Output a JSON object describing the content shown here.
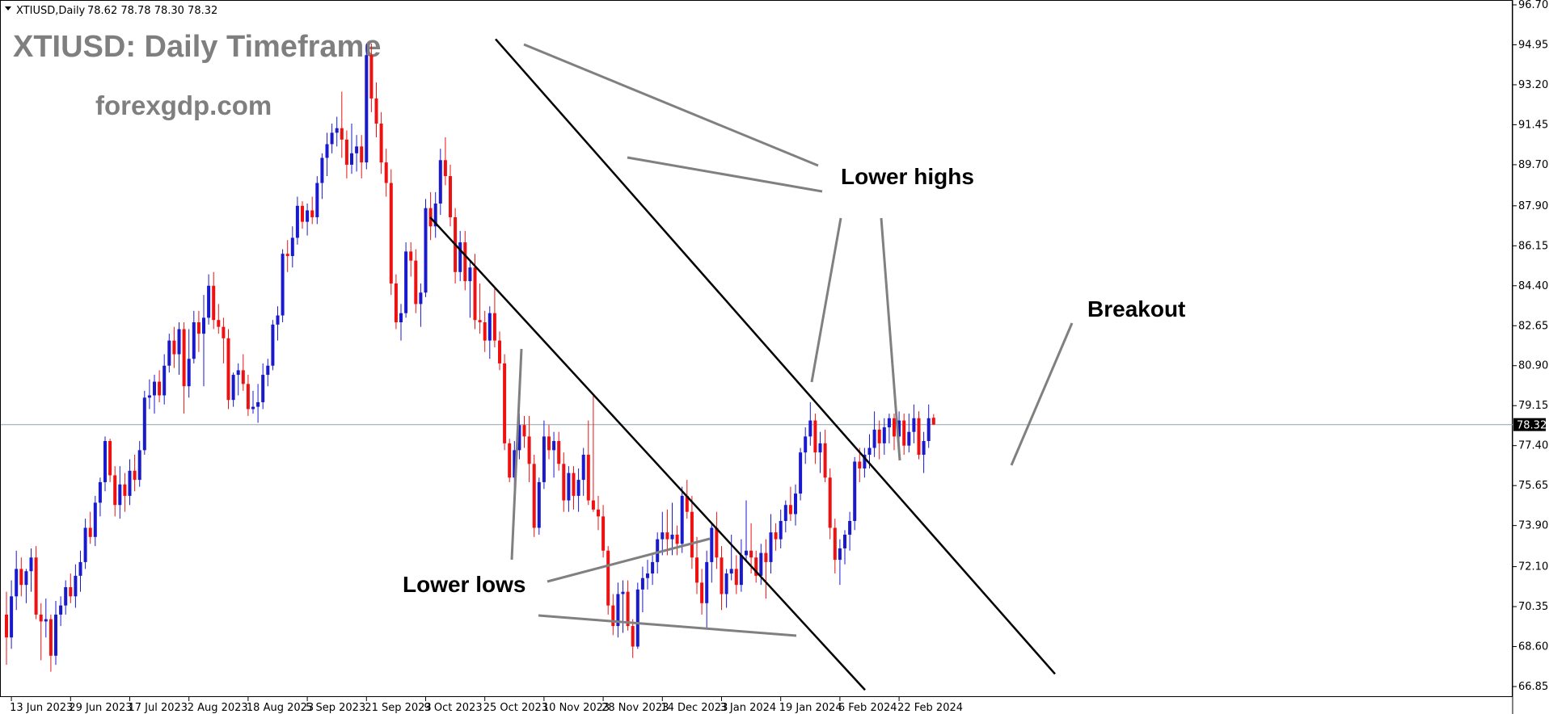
{
  "header": {
    "symbol_info": "XTIUSD,Daily",
    "ohlc": "78.62 78.78 78.30 78.32"
  },
  "watermark": {
    "title": "XTIUSD: Daily Timeframe",
    "site": "forexgdp.com"
  },
  "annotations": {
    "lower_highs": "Lower highs",
    "lower_lows": "Lower lows",
    "breakout": "Breakout"
  },
  "colors": {
    "bull": "#1a1acd",
    "bear": "#ee1111",
    "price_line": "#8fa3a9",
    "current_tag": "#000000",
    "annotation_line": "#808080",
    "channel_line": "#000000"
  },
  "chart_data": {
    "type": "candlestick",
    "title": "XTIUSD,Daily",
    "current_price": 78.32,
    "ylim": [
      66.85,
      96.7
    ],
    "y_ticks": [
      "96.70",
      "94.95",
      "93.20",
      "91.45",
      "89.70",
      "87.90",
      "86.15",
      "84.40",
      "82.65",
      "80.90",
      "79.15",
      "77.40",
      "75.65",
      "73.90",
      "72.10",
      "70.35",
      "68.60",
      "66.85"
    ],
    "x_ticks": [
      "13 Jun 2023",
      "29 Jun 2023",
      "17 Jul 2023",
      "2 Aug 2023",
      "18 Aug 2023",
      "5 Sep 2023",
      "21 Sep 2023",
      "9 Oct 2023",
      "25 Oct 2023",
      "10 Nov 2023",
      "28 Nov 2023",
      "14 Dec 2023",
      "3 Jan 2024",
      "19 Jan 2024",
      "6 Feb 2024",
      "22 Feb 2024"
    ],
    "channel": {
      "upper": {
        "from": [
          "2023-09-26",
          95.2
        ],
        "to": [
          "2024-02-01",
          67.4
        ]
      },
      "lower": {
        "from": [
          "2023-09-10",
          87.4
        ],
        "to": [
          "2023-12-10",
          66.7
        ]
      }
    },
    "ohlc": [
      {
        "o": 70.0,
        "h": 71.0,
        "l": 67.8,
        "c": 69.0
      },
      {
        "o": 69.0,
        "h": 71.5,
        "l": 68.5,
        "c": 70.8
      },
      {
        "o": 70.8,
        "h": 72.8,
        "l": 70.2,
        "c": 72.0
      },
      {
        "o": 72.0,
        "h": 72.5,
        "l": 70.8,
        "c": 71.3
      },
      {
        "o": 71.3,
        "h": 72.0,
        "l": 70.5,
        "c": 71.9
      },
      {
        "o": 71.9,
        "h": 72.9,
        "l": 71.0,
        "c": 72.5
      },
      {
        "o": 72.5,
        "h": 73.0,
        "l": 69.8,
        "c": 70.0
      },
      {
        "o": 70.0,
        "h": 70.5,
        "l": 68.0,
        "c": 69.7
      },
      {
        "o": 69.7,
        "h": 70.7,
        "l": 69.0,
        "c": 69.8
      },
      {
        "o": 69.8,
        "h": 70.0,
        "l": 67.5,
        "c": 68.2
      },
      {
        "o": 68.2,
        "h": 70.6,
        "l": 67.8,
        "c": 70.0
      },
      {
        "o": 70.0,
        "h": 70.8,
        "l": 69.5,
        "c": 70.4
      },
      {
        "o": 70.4,
        "h": 71.5,
        "l": 70.0,
        "c": 71.2
      },
      {
        "o": 71.2,
        "h": 71.8,
        "l": 70.5,
        "c": 70.8
      },
      {
        "o": 70.8,
        "h": 72.2,
        "l": 70.3,
        "c": 71.7
      },
      {
        "o": 71.7,
        "h": 72.8,
        "l": 71.0,
        "c": 72.3
      },
      {
        "o": 72.3,
        "h": 74.2,
        "l": 72.0,
        "c": 73.8
      },
      {
        "o": 73.8,
        "h": 74.5,
        "l": 73.1,
        "c": 73.4
      },
      {
        "o": 73.4,
        "h": 75.2,
        "l": 73.0,
        "c": 74.9
      },
      {
        "o": 74.9,
        "h": 76.0,
        "l": 74.3,
        "c": 75.8
      },
      {
        "o": 75.8,
        "h": 77.8,
        "l": 75.4,
        "c": 77.6
      },
      {
        "o": 77.6,
        "h": 77.7,
        "l": 75.8,
        "c": 76.1
      },
      {
        "o": 76.1,
        "h": 76.5,
        "l": 74.3,
        "c": 74.8
      },
      {
        "o": 74.8,
        "h": 76.5,
        "l": 74.2,
        "c": 75.7
      },
      {
        "o": 75.7,
        "h": 76.2,
        "l": 74.5,
        "c": 75.2
      },
      {
        "o": 75.2,
        "h": 76.8,
        "l": 74.8,
        "c": 76.3
      },
      {
        "o": 76.3,
        "h": 77.0,
        "l": 75.4,
        "c": 75.9
      },
      {
        "o": 75.9,
        "h": 77.6,
        "l": 75.6,
        "c": 77.2
      },
      {
        "o": 77.2,
        "h": 79.8,
        "l": 77.0,
        "c": 79.5
      },
      {
        "o": 79.5,
        "h": 80.3,
        "l": 79.0,
        "c": 79.6
      },
      {
        "o": 79.6,
        "h": 80.5,
        "l": 78.8,
        "c": 80.2
      },
      {
        "o": 80.2,
        "h": 80.7,
        "l": 79.3,
        "c": 79.6
      },
      {
        "o": 79.6,
        "h": 81.4,
        "l": 79.2,
        "c": 80.9
      },
      {
        "o": 80.9,
        "h": 82.3,
        "l": 80.6,
        "c": 82.0
      },
      {
        "o": 82.0,
        "h": 82.6,
        "l": 80.8,
        "c": 81.4
      },
      {
        "o": 81.4,
        "h": 82.8,
        "l": 80.5,
        "c": 82.5
      },
      {
        "o": 82.5,
        "h": 82.8,
        "l": 78.8,
        "c": 80.0
      },
      {
        "o": 80.0,
        "h": 82.5,
        "l": 79.5,
        "c": 81.2
      },
      {
        "o": 81.2,
        "h": 83.3,
        "l": 81.0,
        "c": 82.8
      },
      {
        "o": 82.8,
        "h": 83.3,
        "l": 81.5,
        "c": 82.3
      },
      {
        "o": 82.3,
        "h": 84.0,
        "l": 80.0,
        "c": 83.0
      },
      {
        "o": 83.0,
        "h": 84.9,
        "l": 82.7,
        "c": 84.4
      },
      {
        "o": 84.4,
        "h": 85.0,
        "l": 82.5,
        "c": 82.9
      },
      {
        "o": 82.9,
        "h": 83.6,
        "l": 82.3,
        "c": 82.6
      },
      {
        "o": 82.6,
        "h": 83.0,
        "l": 81.0,
        "c": 82.1
      },
      {
        "o": 82.1,
        "h": 82.5,
        "l": 79.0,
        "c": 79.4
      },
      {
        "o": 79.4,
        "h": 80.6,
        "l": 79.1,
        "c": 80.5
      },
      {
        "o": 80.5,
        "h": 81.0,
        "l": 79.6,
        "c": 80.7
      },
      {
        "o": 80.7,
        "h": 81.4,
        "l": 79.8,
        "c": 80.1
      },
      {
        "o": 80.1,
        "h": 80.5,
        "l": 78.7,
        "c": 79.0
      },
      {
        "o": 79.0,
        "h": 79.8,
        "l": 78.8,
        "c": 79.1
      },
      {
        "o": 79.1,
        "h": 80.1,
        "l": 78.4,
        "c": 79.3
      },
      {
        "o": 79.3,
        "h": 81.0,
        "l": 79.0,
        "c": 80.5
      },
      {
        "o": 80.5,
        "h": 81.2,
        "l": 80.0,
        "c": 80.9
      },
      {
        "o": 80.9,
        "h": 82.9,
        "l": 80.7,
        "c": 82.7
      },
      {
        "o": 82.7,
        "h": 83.5,
        "l": 82.0,
        "c": 83.1
      },
      {
        "o": 83.1,
        "h": 86.0,
        "l": 82.8,
        "c": 85.8
      },
      {
        "o": 85.8,
        "h": 86.4,
        "l": 85.0,
        "c": 85.7
      },
      {
        "o": 85.7,
        "h": 87.0,
        "l": 85.2,
        "c": 86.5
      },
      {
        "o": 86.5,
        "h": 88.3,
        "l": 86.2,
        "c": 87.9
      },
      {
        "o": 87.9,
        "h": 88.1,
        "l": 86.9,
        "c": 87.2
      },
      {
        "o": 87.2,
        "h": 88.0,
        "l": 86.6,
        "c": 87.7
      },
      {
        "o": 87.7,
        "h": 88.3,
        "l": 87.1,
        "c": 87.4
      },
      {
        "o": 87.4,
        "h": 89.2,
        "l": 87.1,
        "c": 88.9
      },
      {
        "o": 88.9,
        "h": 90.2,
        "l": 88.2,
        "c": 90.0
      },
      {
        "o": 90.0,
        "h": 91.1,
        "l": 89.2,
        "c": 90.6
      },
      {
        "o": 90.6,
        "h": 91.5,
        "l": 90.2,
        "c": 91.1
      },
      {
        "o": 91.1,
        "h": 91.8,
        "l": 90.5,
        "c": 91.3
      },
      {
        "o": 91.3,
        "h": 92.9,
        "l": 90.0,
        "c": 90.8
      },
      {
        "o": 90.8,
        "h": 91.2,
        "l": 89.1,
        "c": 89.7
      },
      {
        "o": 89.7,
        "h": 91.5,
        "l": 89.3,
        "c": 90.2
      },
      {
        "o": 90.2,
        "h": 91.0,
        "l": 89.4,
        "c": 90.5
      },
      {
        "o": 90.5,
        "h": 91.0,
        "l": 89.1,
        "c": 89.8
      },
      {
        "o": 89.8,
        "h": 95.0,
        "l": 89.5,
        "c": 94.5
      },
      {
        "o": 94.5,
        "h": 95.0,
        "l": 92.0,
        "c": 92.6
      },
      {
        "o": 92.6,
        "h": 93.3,
        "l": 90.9,
        "c": 91.5
      },
      {
        "o": 91.5,
        "h": 92.0,
        "l": 89.3,
        "c": 89.8
      },
      {
        "o": 89.8,
        "h": 90.4,
        "l": 88.3,
        "c": 88.9
      },
      {
        "o": 88.9,
        "h": 89.5,
        "l": 84.0,
        "c": 84.5
      },
      {
        "o": 84.5,
        "h": 84.9,
        "l": 82.5,
        "c": 82.8
      },
      {
        "o": 82.8,
        "h": 83.6,
        "l": 82.0,
        "c": 83.2
      },
      {
        "o": 83.2,
        "h": 86.3,
        "l": 83.0,
        "c": 85.9
      },
      {
        "o": 85.9,
        "h": 86.3,
        "l": 84.8,
        "c": 85.5
      },
      {
        "o": 85.5,
        "h": 86.0,
        "l": 83.2,
        "c": 83.6
      },
      {
        "o": 83.6,
        "h": 84.5,
        "l": 82.6,
        "c": 84.1
      },
      {
        "o": 84.1,
        "h": 88.2,
        "l": 83.9,
        "c": 87.8
      },
      {
        "o": 87.8,
        "h": 88.5,
        "l": 86.4,
        "c": 87.0
      },
      {
        "o": 87.0,
        "h": 88.5,
        "l": 86.5,
        "c": 88.0
      },
      {
        "o": 88.0,
        "h": 90.4,
        "l": 87.5,
        "c": 89.9
      },
      {
        "o": 89.9,
        "h": 90.9,
        "l": 88.8,
        "c": 89.2
      },
      {
        "o": 89.2,
        "h": 89.7,
        "l": 87.0,
        "c": 87.4
      },
      {
        "o": 87.4,
        "h": 87.8,
        "l": 84.5,
        "c": 85.0
      },
      {
        "o": 85.0,
        "h": 86.8,
        "l": 84.6,
        "c": 86.3
      },
      {
        "o": 86.3,
        "h": 86.8,
        "l": 84.2,
        "c": 84.6
      },
      {
        "o": 84.6,
        "h": 85.5,
        "l": 83.0,
        "c": 85.2
      },
      {
        "o": 85.2,
        "h": 85.8,
        "l": 82.5,
        "c": 82.9
      },
      {
        "o": 82.9,
        "h": 84.5,
        "l": 82.3,
        "c": 82.8
      },
      {
        "o": 82.8,
        "h": 83.3,
        "l": 81.5,
        "c": 82.0
      },
      {
        "o": 82.0,
        "h": 83.5,
        "l": 81.2,
        "c": 83.2
      },
      {
        "o": 83.2,
        "h": 84.3,
        "l": 81.7,
        "c": 82.0
      },
      {
        "o": 82.0,
        "h": 82.4,
        "l": 80.7,
        "c": 81.0
      },
      {
        "o": 81.0,
        "h": 81.4,
        "l": 77.2,
        "c": 77.5
      },
      {
        "o": 77.5,
        "h": 77.7,
        "l": 75.8,
        "c": 76.0
      },
      {
        "o": 76.0,
        "h": 77.6,
        "l": 75.4,
        "c": 77.2
      },
      {
        "o": 77.2,
        "h": 78.8,
        "l": 76.8,
        "c": 78.3
      },
      {
        "o": 78.3,
        "h": 78.7,
        "l": 77.3,
        "c": 77.8
      },
      {
        "o": 77.8,
        "h": 78.7,
        "l": 75.8,
        "c": 76.6
      },
      {
        "o": 76.6,
        "h": 77.0,
        "l": 73.4,
        "c": 73.8
      },
      {
        "o": 73.8,
        "h": 76.0,
        "l": 73.5,
        "c": 75.8
      },
      {
        "o": 75.8,
        "h": 78.5,
        "l": 75.5,
        "c": 77.8
      },
      {
        "o": 77.8,
        "h": 78.3,
        "l": 76.8,
        "c": 77.2
      },
      {
        "o": 77.2,
        "h": 78.0,
        "l": 76.0,
        "c": 77.6
      },
      {
        "o": 77.6,
        "h": 78.0,
        "l": 76.3,
        "c": 76.6
      },
      {
        "o": 76.6,
        "h": 77.1,
        "l": 74.5,
        "c": 75.0
      },
      {
        "o": 75.0,
        "h": 76.5,
        "l": 74.5,
        "c": 76.2
      },
      {
        "o": 76.2,
        "h": 76.5,
        "l": 74.6,
        "c": 75.2
      },
      {
        "o": 75.2,
        "h": 76.4,
        "l": 74.5,
        "c": 75.9
      },
      {
        "o": 75.9,
        "h": 77.3,
        "l": 75.2,
        "c": 77.0
      },
      {
        "o": 77.0,
        "h": 78.5,
        "l": 74.8,
        "c": 75.0
      },
      {
        "o": 75.0,
        "h": 79.6,
        "l": 74.5,
        "c": 74.6
      },
      {
        "o": 74.6,
        "h": 75.2,
        "l": 73.7,
        "c": 74.3
      },
      {
        "o": 74.3,
        "h": 74.8,
        "l": 72.5,
        "c": 72.8
      },
      {
        "o": 72.8,
        "h": 73.0,
        "l": 70.0,
        "c": 70.4
      },
      {
        "o": 70.4,
        "h": 70.9,
        "l": 69.1,
        "c": 69.5
      },
      {
        "o": 69.5,
        "h": 71.4,
        "l": 69.0,
        "c": 70.9
      },
      {
        "o": 70.9,
        "h": 71.5,
        "l": 69.2,
        "c": 71.0
      },
      {
        "o": 71.0,
        "h": 71.5,
        "l": 69.3,
        "c": 69.5
      },
      {
        "o": 69.5,
        "h": 69.8,
        "l": 68.1,
        "c": 68.6
      },
      {
        "o": 68.6,
        "h": 71.4,
        "l": 68.5,
        "c": 71.1
      },
      {
        "o": 71.1,
        "h": 72.1,
        "l": 70.1,
        "c": 71.6
      },
      {
        "o": 71.6,
        "h": 72.4,
        "l": 71.1,
        "c": 71.8
      },
      {
        "o": 71.8,
        "h": 72.6,
        "l": 71.3,
        "c": 72.3
      },
      {
        "o": 72.3,
        "h": 73.6,
        "l": 71.8,
        "c": 73.3
      },
      {
        "o": 73.3,
        "h": 74.5,
        "l": 72.6,
        "c": 73.6
      },
      {
        "o": 73.6,
        "h": 74.6,
        "l": 72.6,
        "c": 73.3
      },
      {
        "o": 73.3,
        "h": 74.9,
        "l": 72.6,
        "c": 73.5
      },
      {
        "o": 73.5,
        "h": 73.9,
        "l": 72.6,
        "c": 73.1
      },
      {
        "o": 73.1,
        "h": 75.6,
        "l": 72.7,
        "c": 75.2
      },
      {
        "o": 75.2,
        "h": 75.9,
        "l": 74.2,
        "c": 74.5
      },
      {
        "o": 74.5,
        "h": 75.2,
        "l": 72.0,
        "c": 72.5
      },
      {
        "o": 72.5,
        "h": 73.4,
        "l": 70.9,
        "c": 71.4
      },
      {
        "o": 71.4,
        "h": 72.0,
        "l": 70.0,
        "c": 70.5
      },
      {
        "o": 70.5,
        "h": 72.8,
        "l": 69.4,
        "c": 72.3
      },
      {
        "o": 72.3,
        "h": 74.0,
        "l": 71.4,
        "c": 73.8
      },
      {
        "o": 73.8,
        "h": 74.5,
        "l": 72.0,
        "c": 72.5
      },
      {
        "o": 72.5,
        "h": 73.0,
        "l": 70.2,
        "c": 70.9
      },
      {
        "o": 70.9,
        "h": 72.0,
        "l": 70.3,
        "c": 71.8
      },
      {
        "o": 71.8,
        "h": 73.5,
        "l": 71.5,
        "c": 72.0
      },
      {
        "o": 72.0,
        "h": 72.6,
        "l": 70.9,
        "c": 71.3
      },
      {
        "o": 71.3,
        "h": 73.3,
        "l": 71.0,
        "c": 72.6
      },
      {
        "o": 72.6,
        "h": 75.0,
        "l": 72.3,
        "c": 72.8
      },
      {
        "o": 72.8,
        "h": 74.0,
        "l": 71.8,
        "c": 72.5
      },
      {
        "o": 72.5,
        "h": 72.8,
        "l": 71.4,
        "c": 71.7
      },
      {
        "o": 71.7,
        "h": 73.1,
        "l": 71.3,
        "c": 72.7
      },
      {
        "o": 72.7,
        "h": 73.3,
        "l": 70.7,
        "c": 72.3
      },
      {
        "o": 72.3,
        "h": 74.4,
        "l": 71.8,
        "c": 73.6
      },
      {
        "o": 73.6,
        "h": 74.0,
        "l": 72.8,
        "c": 73.3
      },
      {
        "o": 73.3,
        "h": 74.6,
        "l": 72.9,
        "c": 74.1
      },
      {
        "o": 74.1,
        "h": 75.0,
        "l": 73.6,
        "c": 74.8
      },
      {
        "o": 74.8,
        "h": 75.6,
        "l": 74.1,
        "c": 74.4
      },
      {
        "o": 74.4,
        "h": 75.7,
        "l": 73.9,
        "c": 75.3
      },
      {
        "o": 75.3,
        "h": 77.3,
        "l": 75.0,
        "c": 77.1
      },
      {
        "o": 77.1,
        "h": 78.2,
        "l": 76.6,
        "c": 77.8
      },
      {
        "o": 77.8,
        "h": 79.3,
        "l": 77.4,
        "c": 78.5
      },
      {
        "o": 78.5,
        "h": 78.8,
        "l": 76.6,
        "c": 77.1
      },
      {
        "o": 77.1,
        "h": 78.0,
        "l": 76.2,
        "c": 77.5
      },
      {
        "o": 77.5,
        "h": 78.1,
        "l": 75.8,
        "c": 76.0
      },
      {
        "o": 76.0,
        "h": 76.4,
        "l": 73.3,
        "c": 73.8
      },
      {
        "o": 73.8,
        "h": 74.2,
        "l": 71.8,
        "c": 72.4
      },
      {
        "o": 72.4,
        "h": 73.3,
        "l": 71.3,
        "c": 72.9
      },
      {
        "o": 72.9,
        "h": 73.7,
        "l": 72.2,
        "c": 73.5
      },
      {
        "o": 73.5,
        "h": 74.5,
        "l": 72.8,
        "c": 74.1
      },
      {
        "o": 74.1,
        "h": 76.9,
        "l": 73.7,
        "c": 76.7
      },
      {
        "o": 76.7,
        "h": 77.3,
        "l": 75.8,
        "c": 76.4
      },
      {
        "o": 76.4,
        "h": 77.3,
        "l": 76.0,
        "c": 77.0
      },
      {
        "o": 77.0,
        "h": 77.9,
        "l": 76.4,
        "c": 77.3
      },
      {
        "o": 77.3,
        "h": 78.9,
        "l": 76.9,
        "c": 78.1
      },
      {
        "o": 78.1,
        "h": 78.5,
        "l": 76.8,
        "c": 77.5
      },
      {
        "o": 77.5,
        "h": 78.6,
        "l": 77.0,
        "c": 78.2
      },
      {
        "o": 78.2,
        "h": 78.8,
        "l": 77.5,
        "c": 78.6
      },
      {
        "o": 78.6,
        "h": 78.8,
        "l": 77.2,
        "c": 77.8
      },
      {
        "o": 77.8,
        "h": 78.9,
        "l": 77.4,
        "c": 78.5
      },
      {
        "o": 78.5,
        "h": 78.8,
        "l": 77.0,
        "c": 77.4
      },
      {
        "o": 77.4,
        "h": 78.8,
        "l": 77.1,
        "c": 78.0
      },
      {
        "o": 78.0,
        "h": 79.2,
        "l": 77.5,
        "c": 78.6
      },
      {
        "o": 78.6,
        "h": 78.9,
        "l": 76.8,
        "c": 77.0
      },
      {
        "o": 77.0,
        "h": 78.0,
        "l": 76.2,
        "c": 77.6
      },
      {
        "o": 77.6,
        "h": 79.2,
        "l": 77.3,
        "c": 78.6
      },
      {
        "o": 78.62,
        "h": 78.78,
        "l": 78.3,
        "c": 78.32
      }
    ]
  }
}
